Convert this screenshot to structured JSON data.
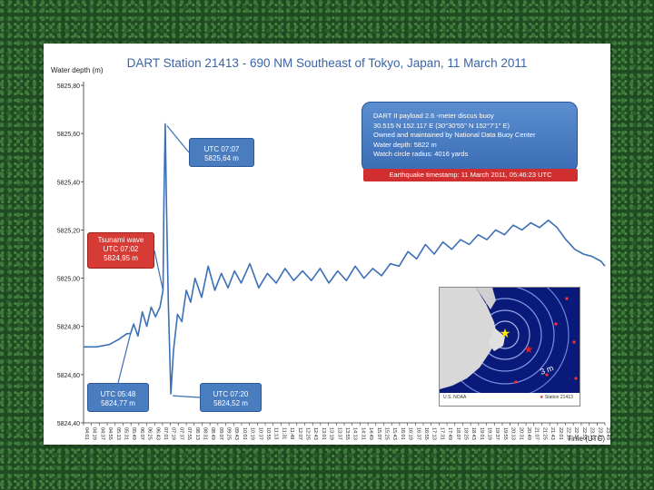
{
  "chart_data": {
    "type": "line",
    "title": "DART Station 21413 - 690 NM Southeast of Tokyo, Japan, 11 March 2011",
    "ylabel": "Water depth (m)",
    "xlabel": "Time (UTC)",
    "ylim": [
      5824.4,
      5825.8
    ],
    "yticks": [
      "5824,40",
      "5824,60",
      "5824,80",
      "5825,00",
      "5825,20",
      "5825,40",
      "5825,60",
      "5825,80"
    ],
    "xticks": [
      "04:01",
      "04:19",
      "04:37",
      "04:55",
      "05:13",
      "05:31",
      "05:49",
      "06:07",
      "06:25",
      "06:43",
      "07:01",
      "07:19",
      "07:37",
      "07:55",
      "08:13",
      "08:31",
      "08:49",
      "09:07",
      "09:25",
      "09:43",
      "10:01",
      "10:19",
      "10:37",
      "10:55",
      "11:13",
      "11:31",
      "11:49",
      "12:07",
      "12:25",
      "12:43",
      "13:01",
      "13:19",
      "13:37",
      "13:55",
      "14:13",
      "14:31",
      "14:49",
      "15:07",
      "15:25",
      "15:43",
      "16:01",
      "16:19",
      "16:37",
      "16:55",
      "17:13",
      "17:31",
      "17:49",
      "18:07",
      "18:25",
      "18:43",
      "19:01",
      "19:19",
      "19:37",
      "19:55",
      "20:13",
      "20:31",
      "20:49",
      "21:07",
      "21:25",
      "21:43",
      "22:01",
      "22:19",
      "22:37",
      "22:55",
      "23:13",
      "23:31",
      "23:49"
    ],
    "series": [
      {
        "color": "#3b6fb6",
        "points": [
          [
            "04:01",
            5824.715
          ],
          [
            "04:30",
            5824.715
          ],
          [
            "05:00",
            5824.725
          ],
          [
            "05:20",
            5824.745
          ],
          [
            "05:40",
            5824.77
          ],
          [
            "05:48",
            5824.77
          ],
          [
            "05:55",
            5824.81
          ],
          [
            "06:05",
            5824.76
          ],
          [
            "06:15",
            5824.86
          ],
          [
            "06:25",
            5824.8
          ],
          [
            "06:35",
            5824.88
          ],
          [
            "06:45",
            5824.84
          ],
          [
            "06:55",
            5824.88
          ],
          [
            "07:02",
            5824.95
          ],
          [
            "07:04",
            5825.3
          ],
          [
            "07:07",
            5825.64
          ],
          [
            "07:10",
            5825.3
          ],
          [
            "07:14",
            5824.9
          ],
          [
            "07:20",
            5824.52
          ],
          [
            "07:26",
            5824.7
          ],
          [
            "07:35",
            5824.85
          ],
          [
            "07:45",
            5824.82
          ],
          [
            "07:55",
            5824.95
          ],
          [
            "08:05",
            5824.9
          ],
          [
            "08:15",
            5825.0
          ],
          [
            "08:30",
            5824.92
          ],
          [
            "08:45",
            5825.05
          ],
          [
            "09:00",
            5824.95
          ],
          [
            "09:15",
            5825.02
          ],
          [
            "09:30",
            5824.96
          ],
          [
            "09:45",
            5825.03
          ],
          [
            "10:00",
            5824.98
          ],
          [
            "10:20",
            5825.06
          ],
          [
            "10:40",
            5824.96
          ],
          [
            "11:00",
            5825.02
          ],
          [
            "11:20",
            5824.98
          ],
          [
            "11:40",
            5825.04
          ],
          [
            "12:00",
            5824.99
          ],
          [
            "12:20",
            5825.03
          ],
          [
            "12:40",
            5824.99
          ],
          [
            "13:00",
            5825.04
          ],
          [
            "13:20",
            5824.98
          ],
          [
            "13:40",
            5825.03
          ],
          [
            "14:00",
            5824.99
          ],
          [
            "14:20",
            5825.05
          ],
          [
            "14:40",
            5825.0
          ],
          [
            "15:00",
            5825.04
          ],
          [
            "15:20",
            5825.01
          ],
          [
            "15:40",
            5825.06
          ],
          [
            "16:00",
            5825.05
          ],
          [
            "16:20",
            5825.11
          ],
          [
            "16:40",
            5825.08
          ],
          [
            "17:00",
            5825.14
          ],
          [
            "17:20",
            5825.1
          ],
          [
            "17:40",
            5825.15
          ],
          [
            "18:00",
            5825.12
          ],
          [
            "18:20",
            5825.16
          ],
          [
            "18:40",
            5825.14
          ],
          [
            "19:00",
            5825.18
          ],
          [
            "19:20",
            5825.16
          ],
          [
            "19:40",
            5825.2
          ],
          [
            "20:00",
            5825.18
          ],
          [
            "20:20",
            5825.22
          ],
          [
            "20:40",
            5825.2
          ],
          [
            "21:00",
            5825.23
          ],
          [
            "21:20",
            5825.21
          ],
          [
            "21:40",
            5825.24
          ],
          [
            "22:00",
            5825.21
          ],
          [
            "22:20",
            5825.16
          ],
          [
            "22:40",
            5825.12
          ],
          [
            "23:00",
            5825.1
          ],
          [
            "23:20",
            5825.09
          ],
          [
            "23:40",
            5825.07
          ],
          [
            "23:49",
            5825.05
          ]
        ]
      }
    ],
    "annotations": {
      "tsunami": {
        "lines": [
          "Tsunami wave",
          "UTC 07:02",
          "5824,95 m"
        ]
      },
      "peak": {
        "lines": [
          "UTC 07:07",
          "5825,64 m"
        ]
      },
      "start": {
        "lines": [
          "UTC 05:48",
          "5824,77 m"
        ]
      },
      "trough": {
        "lines": [
          "UTC 07:20",
          "5824,52 m"
        ]
      }
    },
    "info": {
      "lines": [
        "DART II payload 2.6 -meter discus buoy",
        "30.515 N 152.117 E (30°30'55\" N 152°7'1\" E)",
        "Owned and maintained by National Data Buoy Center",
        "Water depth: 5822 m",
        "Watch circle radius: 4016 yards"
      ],
      "quake": "Earthquake timestamp: 11 March 2011, 05:46:23 UTC"
    },
    "map": {
      "label_source": "U.S. NOAA",
      "label_station": "Station 21413",
      "wave_label": "3 m"
    },
    "grid": false,
    "legend": "none"
  }
}
